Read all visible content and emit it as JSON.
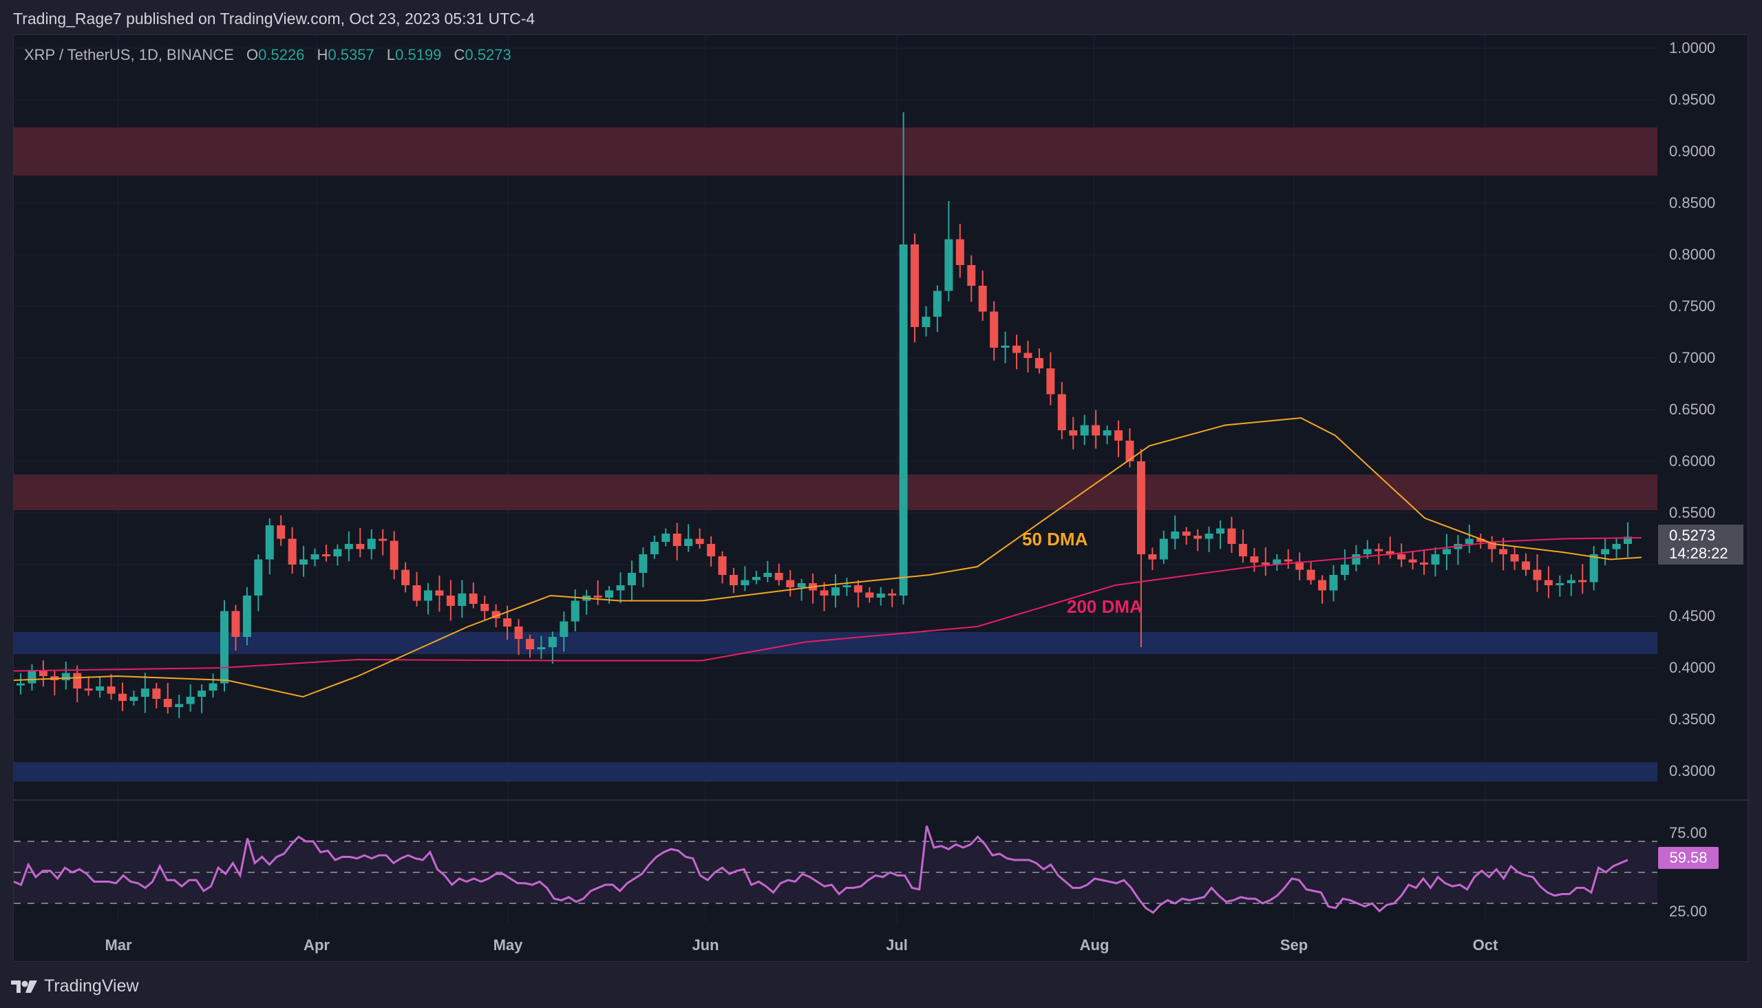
{
  "header": {
    "publish_line": "Trading_Rage7 published on TradingView.com, Oct 23, 2023 05:31 UTC-4"
  },
  "legend": {
    "symbol": "XRP / TetherUS, 1D, BINANCE",
    "open_label": "O",
    "open": "0.5226",
    "high_label": "H",
    "high": "0.5357",
    "low_label": "L",
    "low": "0.5199",
    "close_label": "C",
    "close": "0.5273"
  },
  "last_price": {
    "value": "0.5273",
    "countdown": "14:28:22"
  },
  "rsi_value": "59.58",
  "annotations": {
    "ma50": "50 DMA",
    "ma200": "200 DMA"
  },
  "footer": {
    "brand": "TradingView"
  },
  "colors": {
    "up": "#26a69a",
    "down": "#ef5350",
    "ma50": "#f5a623",
    "ma200": "#e91e63",
    "resistance_zone": "#4a212f",
    "support_zone": "#1c2b59",
    "rsi_line": "#c467cf",
    "rsi_band": "#211d33"
  },
  "chart_data": [
    {
      "type": "candlestick",
      "title": "XRP / TetherUS, 1D, BINANCE",
      "x_ticks": [
        "Mar",
        "Apr",
        "May",
        "Jun",
        "Jul",
        "Aug",
        "Sep",
        "Oct"
      ],
      "y_ticks": [
        "1.0000",
        "0.9500",
        "0.9000",
        "0.8500",
        "0.8000",
        "0.7500",
        "0.7000",
        "0.6500",
        "0.6000",
        "0.5500",
        "0.5000",
        "0.4500",
        "0.4000",
        "0.3500",
        "0.3000"
      ],
      "ylim": [
        0.28,
        1.005
      ],
      "zones": [
        {
          "name": "resistance",
          "from": 0.8767,
          "to": 0.9233,
          "color": "#4a212f"
        },
        {
          "name": "resistance",
          "from": 0.5527,
          "to": 0.5873,
          "color": "#4a212f"
        },
        {
          "name": "support",
          "from": 0.4133,
          "to": 0.4347,
          "color": "#1c2b59"
        },
        {
          "name": "support",
          "from": 0.29,
          "to": 0.3087,
          "color": "#1c2b59"
        }
      ],
      "ohlc_anchors_note": "close prices sampled ~every 3 days Feb 20 to Oct 23",
      "closes": [
        0.385,
        0.398,
        0.392,
        0.388,
        0.395,
        0.38,
        0.378,
        0.382,
        0.375,
        0.368,
        0.372,
        0.38,
        0.37,
        0.362,
        0.365,
        0.372,
        0.378,
        0.385,
        0.455,
        0.43,
        0.47,
        0.505,
        0.538,
        0.525,
        0.5,
        0.505,
        0.51,
        0.508,
        0.515,
        0.52,
        0.515,
        0.525,
        0.523,
        0.495,
        0.48,
        0.465,
        0.475,
        0.47,
        0.46,
        0.472,
        0.462,
        0.455,
        0.448,
        0.44,
        0.428,
        0.418,
        0.42,
        0.43,
        0.445,
        0.465,
        0.47,
        0.468,
        0.475,
        0.48,
        0.492,
        0.51,
        0.522,
        0.53,
        0.518,
        0.525,
        0.52,
        0.508,
        0.49,
        0.48,
        0.485,
        0.488,
        0.492,
        0.485,
        0.478,
        0.482,
        0.475,
        0.47,
        0.478,
        0.48,
        0.473,
        0.468,
        0.472,
        0.47,
        0.81,
        0.73,
        0.74,
        0.765,
        0.815,
        0.79,
        0.77,
        0.745,
        0.71,
        0.712,
        0.705,
        0.7,
        0.69,
        0.665,
        0.63,
        0.625,
        0.635,
        0.625,
        0.63,
        0.62,
        0.6,
        0.51,
        0.505,
        0.525,
        0.532,
        0.528,
        0.525,
        0.53,
        0.535,
        0.52,
        0.508,
        0.502,
        0.5,
        0.505,
        0.503,
        0.495,
        0.485,
        0.475,
        0.49,
        0.5,
        0.51,
        0.515,
        0.513,
        0.51,
        0.505,
        0.502,
        0.5,
        0.51,
        0.515,
        0.52,
        0.525,
        0.522,
        0.515,
        0.51,
        0.503,
        0.495,
        0.485,
        0.48,
        0.482,
        0.485,
        0.483,
        0.51,
        0.515,
        0.52,
        0.527
      ],
      "ma50_note": "approx path",
      "ma50": [
        [
          0,
          0.388
        ],
        [
          150,
          0.392
        ],
        [
          310,
          0.388
        ],
        [
          420,
          0.372
        ],
        [
          500,
          0.392
        ],
        [
          660,
          0.44
        ],
        [
          780,
          0.47
        ],
        [
          880,
          0.465
        ],
        [
          1000,
          0.465
        ],
        [
          1180,
          0.48
        ],
        [
          1330,
          0.49
        ],
        [
          1400,
          0.498
        ],
        [
          1500,
          0.545
        ],
        [
          1650,
          0.615
        ],
        [
          1760,
          0.635
        ],
        [
          1870,
          0.642
        ],
        [
          1920,
          0.625
        ],
        [
          2050,
          0.545
        ],
        [
          2150,
          0.52
        ],
        [
          2250,
          0.512
        ],
        [
          2320,
          0.505
        ],
        [
          2365,
          0.507
        ]
      ],
      "ma200": [
        [
          0,
          0.397
        ],
        [
          300,
          0.4
        ],
        [
          500,
          0.408
        ],
        [
          800,
          0.407
        ],
        [
          1000,
          0.407
        ],
        [
          1150,
          0.425
        ],
        [
          1400,
          0.44
        ],
        [
          1600,
          0.48
        ],
        [
          1800,
          0.498
        ],
        [
          2000,
          0.51
        ],
        [
          2150,
          0.522
        ],
        [
          2250,
          0.525
        ],
        [
          2365,
          0.526
        ]
      ],
      "rsi": {
        "ylim": [
          10,
          90
        ],
        "levels": [
          70,
          50,
          30
        ],
        "tick_labels": [
          "75.00",
          "25.00"
        ],
        "last": 59.58,
        "values": [
          44,
          42,
          55,
          47,
          51,
          51,
          46,
          53,
          50,
          52,
          49,
          44,
          44,
          44,
          43,
          48,
          44,
          43,
          40,
          44,
          54,
          45,
          45,
          41,
          45,
          45,
          38,
          41,
          53,
          49,
          56,
          48,
          72,
          56,
          60,
          55,
          60,
          62,
          68,
          73,
          70,
          70,
          63,
          64,
          58,
          60,
          60,
          59,
          61,
          59,
          61,
          61,
          56,
          59,
          61,
          59,
          58,
          63,
          52,
          48,
          42,
          46,
          44,
          46,
          44,
          46,
          49,
          49,
          46,
          43,
          43,
          42,
          44,
          40,
          33,
          32,
          34,
          31,
          33,
          38,
          40,
          42,
          42,
          38,
          43,
          46,
          49,
          55,
          60,
          63,
          65,
          64,
          60,
          59,
          48,
          45,
          50,
          53,
          49,
          51,
          52,
          42,
          44,
          41,
          37,
          43,
          45,
          44,
          49,
          47,
          44,
          41,
          42,
          36,
          40,
          40,
          41,
          45,
          48,
          47,
          50,
          48,
          48,
          40,
          39,
          80,
          66,
          67,
          65,
          68,
          66,
          68,
          73,
          68,
          61,
          62,
          59,
          58,
          58,
          58,
          56,
          52,
          55,
          48,
          44,
          40,
          40,
          42,
          46,
          45,
          44,
          43,
          45,
          40,
          33,
          27,
          24,
          29,
          32,
          30,
          33,
          32,
          33,
          34,
          40,
          35,
          31,
          32,
          34,
          33,
          33,
          30,
          32,
          35,
          40,
          46,
          45,
          39,
          38,
          37,
          28,
          27,
          33,
          32,
          30,
          28,
          30,
          25,
          29,
          30,
          35,
          42,
          40,
          46,
          40,
          47,
          43,
          41,
          42,
          39,
          47,
          51,
          47,
          52,
          46,
          54,
          50,
          48,
          47,
          41,
          37,
          35,
          36,
          36,
          40,
          40,
          37,
          53,
          50,
          54,
          56,
          58
        ]
      }
    }
  ]
}
